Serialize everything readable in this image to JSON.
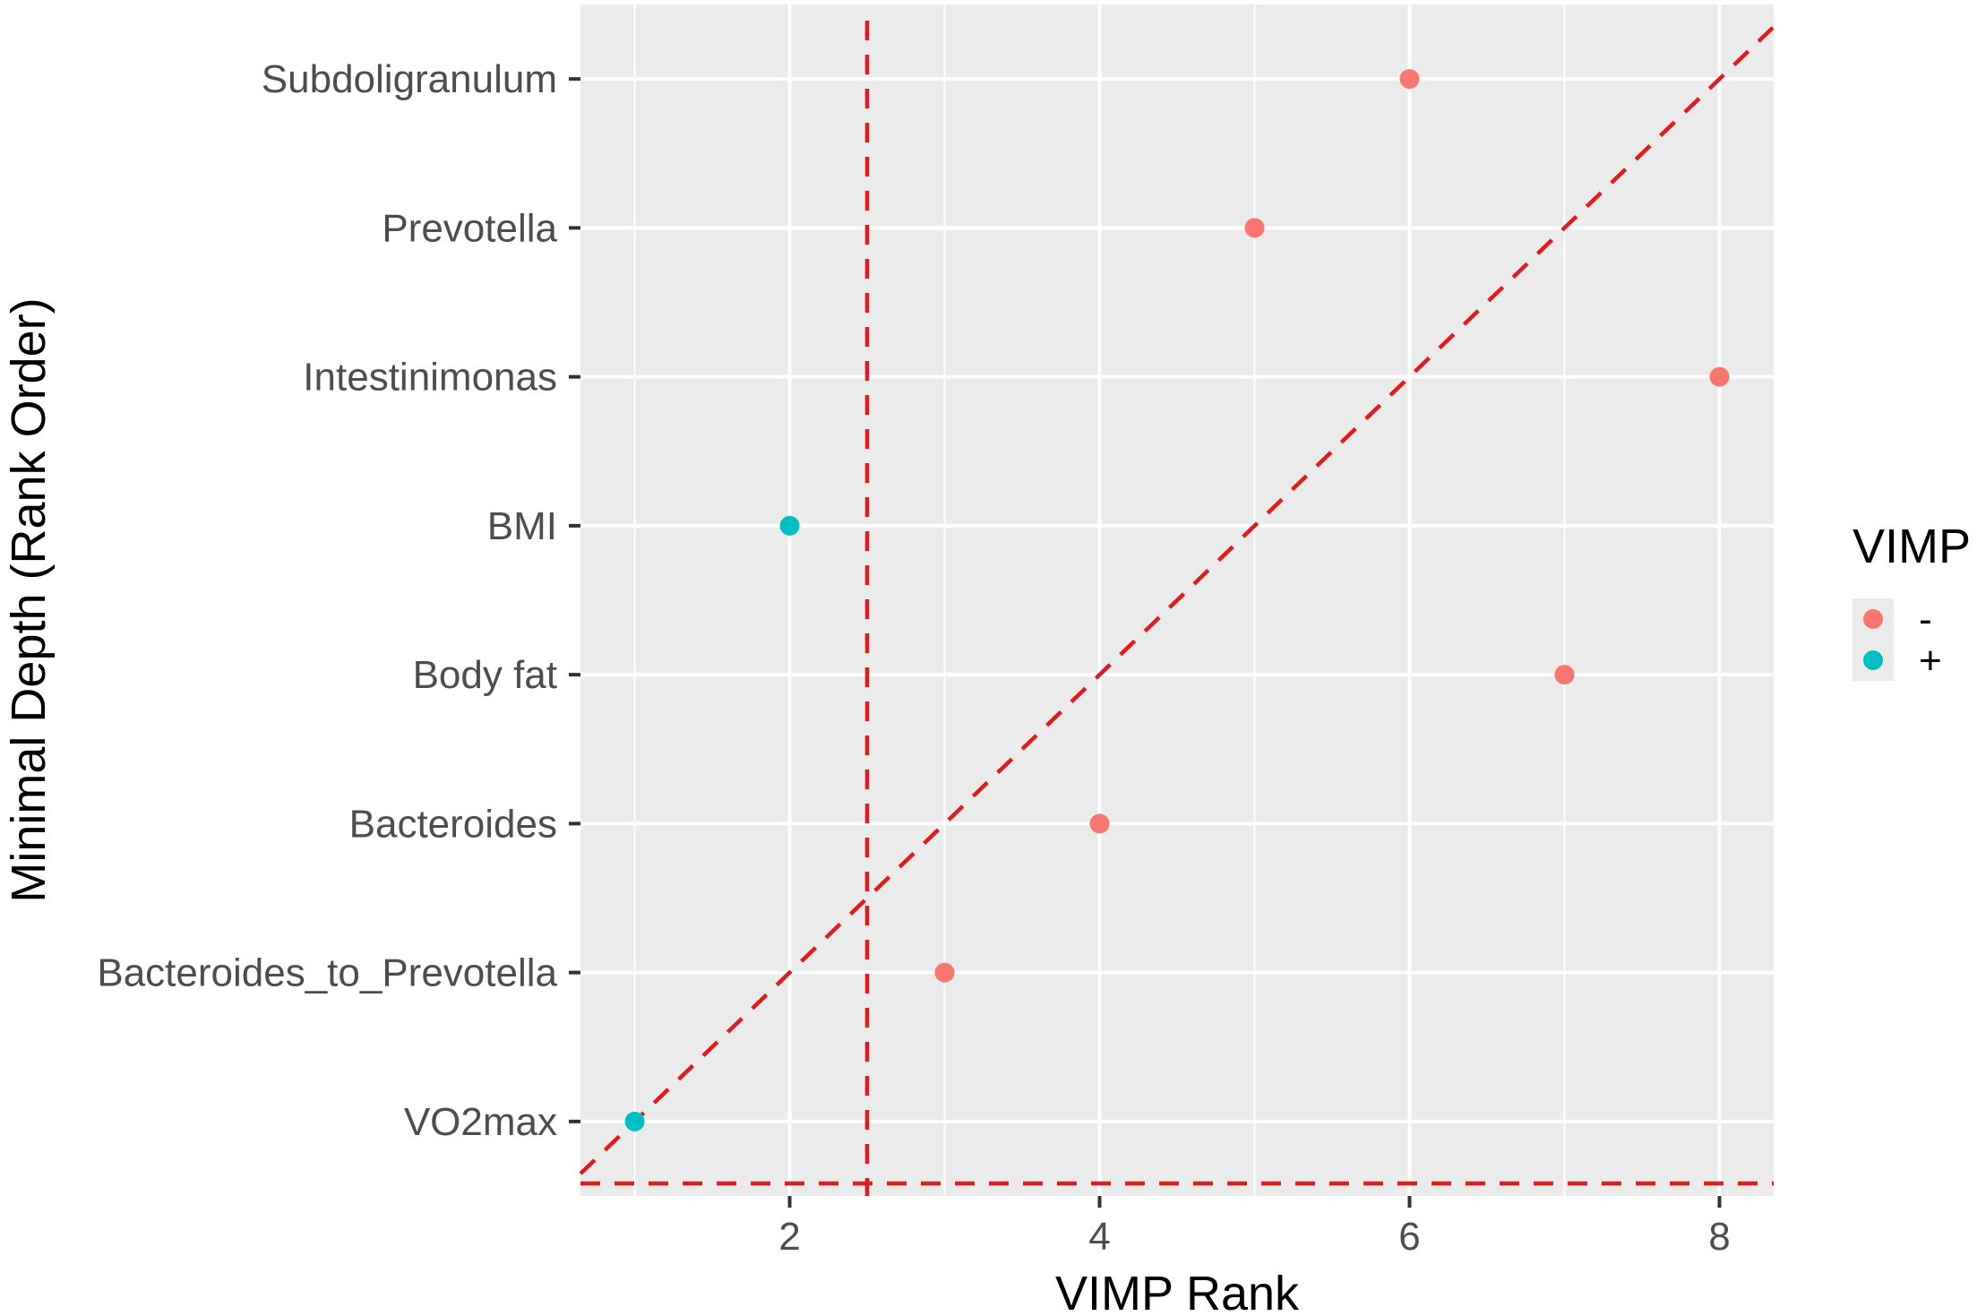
{
  "chart_data": {
    "type": "scatter",
    "title": "",
    "xlabel": "VIMP Rank",
    "ylabel": "Minimal Depth (Rank Order)",
    "xlim": [
      0.65,
      8.35
    ],
    "ylim": [
      0.5,
      8.5
    ],
    "x_ticks": [
      2,
      4,
      6,
      8
    ],
    "x_tick_labels": [
      "2",
      "4",
      "6",
      "8"
    ],
    "categories": [
      "VO2max",
      "Bacteroides_to_Prevotella",
      "Bacteroides",
      "Body fat",
      "BMI",
      "Intestinimonas",
      "Prevotella",
      "Subdoligranulum"
    ],
    "points": [
      {
        "label": "Subdoligranulum",
        "x": 6,
        "y": 8,
        "group": "-"
      },
      {
        "label": "Prevotella",
        "x": 5,
        "y": 7,
        "group": "-"
      },
      {
        "label": "Intestinimonas",
        "x": 8,
        "y": 6,
        "group": "-"
      },
      {
        "label": "BMI",
        "x": 2,
        "y": 5,
        "group": "+"
      },
      {
        "label": "Body fat",
        "x": 7,
        "y": 4,
        "group": "-"
      },
      {
        "label": "Bacteroides",
        "x": 4,
        "y": 3,
        "group": "-"
      },
      {
        "label": "Bacteroides_to_Prevotella",
        "x": 3,
        "y": 2,
        "group": "-"
      },
      {
        "label": "VO2max",
        "x": 1,
        "y": 1,
        "group": "+"
      }
    ],
    "reference_lines": {
      "vertical_x": 2.5,
      "horizontal_y": 0.5,
      "diagonal": "y = x"
    },
    "legend": {
      "title": "VIMP",
      "position": "right",
      "items": [
        {
          "label": "-",
          "color": "#F8766D"
        },
        {
          "label": "+",
          "color": "#00BFC4"
        }
      ]
    },
    "colors": {
      "panel": "#EBEBEB",
      "grid": "#FFFFFF",
      "reference_line": "#E31A1C",
      "tick": "#333333"
    }
  }
}
